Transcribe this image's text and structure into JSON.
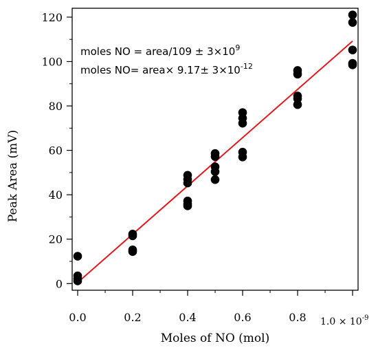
{
  "chart_data": {
    "type": "scatter",
    "title": "",
    "xlabel": "Moles of NO (mol)",
    "ylabel": "Peak Area (mV)",
    "xlim": [
      -0.02,
      1.02
    ],
    "ylim": [
      -3,
      124
    ],
    "x_ticks": [
      0.0,
      0.2,
      0.4,
      0.6,
      0.8
    ],
    "x_tick_labels": [
      "0.0",
      "0.2",
      "0.4",
      "0.6",
      "0.8"
    ],
    "x_multiplier": {
      "base": "1.0 × 10",
      "exponent": "-9"
    },
    "y_ticks": [
      0,
      20,
      40,
      60,
      80,
      100,
      120
    ],
    "y_tick_labels": [
      "0",
      "20",
      "40",
      "60",
      "80",
      "100",
      "120"
    ],
    "grid": false,
    "points": [
      {
        "x": 0.0,
        "y": 12.3
      },
      {
        "x": 0.0,
        "y": 3.5
      },
      {
        "x": 0.0,
        "y": 2.2
      },
      {
        "x": 0.0,
        "y": 1.2
      },
      {
        "x": 0.2,
        "y": 22.3
      },
      {
        "x": 0.2,
        "y": 21.5
      },
      {
        "x": 0.2,
        "y": 15.2
      },
      {
        "x": 0.2,
        "y": 14.4
      },
      {
        "x": 0.4,
        "y": 48.8
      },
      {
        "x": 0.4,
        "y": 47.0
      },
      {
        "x": 0.4,
        "y": 45.3
      },
      {
        "x": 0.4,
        "y": 37.2
      },
      {
        "x": 0.4,
        "y": 35.8
      },
      {
        "x": 0.4,
        "y": 35.0
      },
      {
        "x": 0.5,
        "y": 58.6
      },
      {
        "x": 0.5,
        "y": 57.2
      },
      {
        "x": 0.5,
        "y": 52.6
      },
      {
        "x": 0.5,
        "y": 50.4
      },
      {
        "x": 0.5,
        "y": 46.8
      },
      {
        "x": 0.6,
        "y": 77.0
      },
      {
        "x": 0.6,
        "y": 74.5
      },
      {
        "x": 0.6,
        "y": 72.2
      },
      {
        "x": 0.6,
        "y": 59.2
      },
      {
        "x": 0.6,
        "y": 57.0
      },
      {
        "x": 0.8,
        "y": 96.0
      },
      {
        "x": 0.8,
        "y": 94.3
      },
      {
        "x": 0.8,
        "y": 84.5
      },
      {
        "x": 0.8,
        "y": 83.3
      },
      {
        "x": 0.8,
        "y": 80.6
      },
      {
        "x": 1.0,
        "y": 121.0
      },
      {
        "x": 1.0,
        "y": 117.6
      },
      {
        "x": 1.0,
        "y": 105.2
      },
      {
        "x": 1.0,
        "y": 99.2
      },
      {
        "x": 1.0,
        "y": 98.5
      }
    ],
    "point_color": "#000000",
    "fit_line": {
      "x": [
        0.0,
        1.0
      ],
      "y": [
        0.5,
        109.2
      ],
      "color": "#e0191f"
    },
    "annotations": [
      {
        "text": "moles NO = area/109 ± 3×10",
        "sup": "9"
      },
      {
        "text": "moles NO= area× 9.17± 3×10",
        "sup": "-12"
      }
    ]
  }
}
